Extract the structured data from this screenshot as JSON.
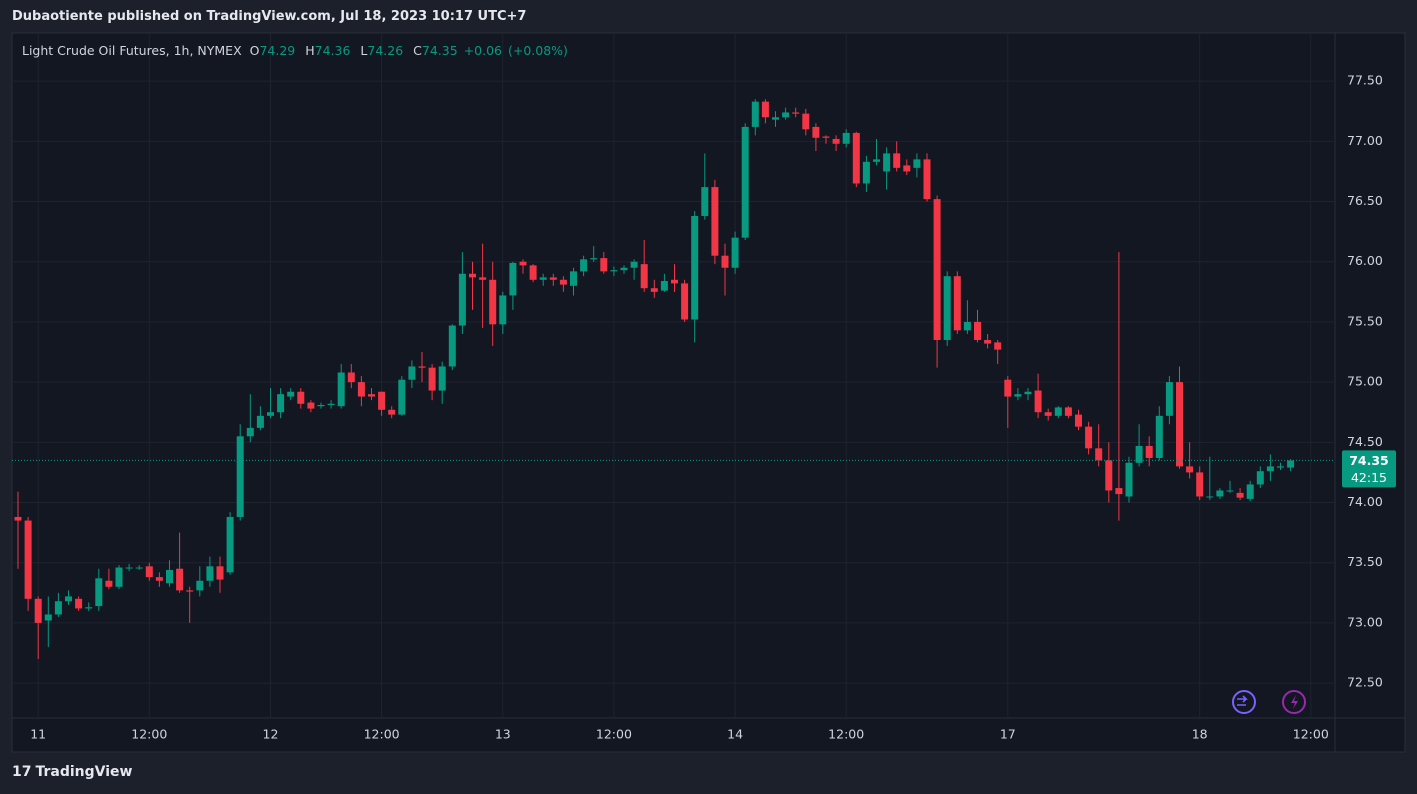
{
  "publisher_line": "Dubaotiente published on TradingView.com, Jul 18, 2023 10:17 UTC+7",
  "brand": "TradingView",
  "chart_data": {
    "type": "candlestick",
    "title": "Light Crude Oil Futures, 1h, NYMEX",
    "ohlc_labels": [
      "O",
      "H",
      "L",
      "C"
    ],
    "change": "+0.06",
    "change_pct": "(+0.08%)",
    "countdown": "42:15",
    "up_color": "#089981",
    "down_color": "#f23645",
    "grid": true,
    "ylim": [
      72.21,
      77.9
    ],
    "yticks": [
      {
        "value": 72.5,
        "label": "72.50"
      },
      {
        "value": 73,
        "label": "73.00"
      },
      {
        "value": 73.5,
        "label": "73.50"
      },
      {
        "value": 74,
        "label": "74.00"
      },
      {
        "value": 74.5,
        "label": "74.50"
      },
      {
        "value": 75,
        "label": "75.00"
      },
      {
        "value": 75.5,
        "label": "75.50"
      },
      {
        "value": 76,
        "label": "76.00"
      },
      {
        "value": 76.5,
        "label": "76.50"
      },
      {
        "value": 77,
        "label": "77.00"
      },
      {
        "value": 77.5,
        "label": "77.50"
      }
    ],
    "categories": [
      null,
      null,
      "11",
      null,
      null,
      null,
      null,
      null,
      null,
      null,
      null,
      null,
      null,
      "12:00",
      null,
      null,
      null,
      null,
      null,
      null,
      null,
      null,
      null,
      null,
      null,
      "12",
      null,
      null,
      null,
      null,
      null,
      null,
      null,
      null,
      null,
      null,
      "12:00",
      null,
      null,
      null,
      null,
      null,
      null,
      null,
      null,
      null,
      null,
      null,
      "13",
      null,
      null,
      null,
      null,
      null,
      null,
      null,
      null,
      null,
      null,
      "12:00",
      null,
      null,
      null,
      null,
      null,
      null,
      null,
      null,
      null,
      null,
      null,
      "14",
      null,
      null,
      null,
      null,
      null,
      null,
      null,
      null,
      null,
      null,
      "12:00",
      null,
      null,
      null,
      null,
      null,
      null,
      null,
      null,
      null,
      null,
      null,
      null,
      null,
      null,
      null,
      "17",
      null,
      null,
      null,
      null,
      null,
      null,
      null,
      null,
      null,
      null,
      null,
      null,
      null,
      null,
      null,
      null,
      null,
      null,
      "18",
      null,
      null,
      null,
      null,
      null,
      null,
      null,
      null,
      null,
      null,
      "12:00",
      null
    ],
    "open": [
      73.88,
      73.85,
      73.2,
      73.02,
      73.07,
      73.18,
      73.2,
      73.12,
      73.14,
      73.35,
      73.3,
      73.46,
      73.46,
      73.47,
      73.38,
      73.33,
      73.45,
      73.27,
      73.27,
      73.35,
      73.47,
      73.42,
      73.88,
      74.55,
      74.62,
      74.72,
      74.75,
      74.88,
      74.92,
      74.83,
      74.8,
      74.81,
      74.8,
      75.08,
      75,
      74.9,
      74.92,
      74.77,
      74.73,
      75.02,
      75.13,
      75.12,
      74.93,
      75.13,
      75.47,
      75.9,
      75.87,
      75.85,
      75.48,
      75.72,
      76,
      75.97,
      75.85,
      75.87,
      75.85,
      75.8,
      75.92,
      76.02,
      76.03,
      75.92,
      75.93,
      75.95,
      75.98,
      75.78,
      75.76,
      75.85,
      75.82,
      75.52,
      76.38,
      76.62,
      76.05,
      75.95,
      76.2,
      77.12,
      77.33,
      77.18,
      77.2,
      77.24,
      77.23,
      77.12,
      77.04,
      77.02,
      76.98,
      77.07,
      76.65,
      76.83,
      76.75,
      76.9,
      76.8,
      76.78,
      76.85,
      76.52,
      75.35,
      75.88,
      75.43,
      75.5,
      75.35,
      75.33,
      75.02,
      74.88,
      74.9,
      74.93,
      74.75,
      74.72,
      74.79,
      74.73,
      74.63,
      74.45,
      74.35,
      74.12,
      74.05,
      74.33,
      74.47,
      74.37,
      74.72,
      75,
      74.3,
      74.25,
      74.05,
      74.05,
      74.1,
      74.08,
      74.03,
      74.15,
      74.26,
      74.29,
      74.29,
      null,
      null,
      null
    ],
    "high": [
      74.09,
      73.88,
      73.22,
      73.22,
      73.25,
      73.27,
      73.22,
      73.17,
      73.45,
      73.45,
      73.48,
      73.49,
      73.48,
      73.5,
      73.42,
      73.52,
      73.75,
      73.3,
      73.47,
      73.55,
      73.55,
      73.92,
      74.65,
      74.9,
      74.8,
      74.95,
      74.95,
      74.95,
      74.95,
      74.85,
      74.83,
      74.85,
      75.15,
      75.15,
      75.05,
      74.95,
      74.92,
      74.8,
      75.05,
      75.18,
      75.25,
      75.15,
      75.17,
      75.48,
      76.08,
      76,
      76.15,
      76,
      75.75,
      76,
      76.02,
      75.98,
      75.9,
      75.9,
      75.88,
      75.95,
      76.05,
      76.13,
      76.08,
      75.96,
      75.97,
      76.02,
      76.18,
      75.85,
      75.9,
      75.98,
      75.85,
      76.42,
      76.9,
      76.68,
      76.15,
      76.25,
      77.15,
      77.35,
      77.35,
      77.25,
      77.28,
      77.28,
      77.27,
      77.15,
      77.05,
      77.05,
      77.1,
      77.08,
      76.88,
      77.02,
      76.95,
      77,
      76.85,
      76.9,
      76.9,
      76.55,
      75.92,
      75.92,
      75.68,
      75.6,
      75.4,
      75.35,
      75.05,
      74.95,
      74.95,
      75.07,
      74.78,
      74.8,
      74.8,
      74.77,
      74.67,
      74.65,
      74.5,
      76.08,
      74.38,
      74.65,
      74.55,
      74.8,
      75.05,
      75.13,
      74.5,
      74.3,
      74.38,
      74.12,
      74.18,
      74.12,
      74.18,
      74.3,
      74.4,
      74.33,
      74.36,
      null,
      null,
      null
    ],
    "low": [
      73.45,
      73.1,
      72.7,
      72.8,
      73.05,
      73.15,
      73.1,
      73.1,
      73.1,
      73.28,
      73.28,
      73.43,
      73.44,
      73.35,
      73.3,
      73.3,
      73.25,
      73,
      73.22,
      73.3,
      73.25,
      73.4,
      73.85,
      74.5,
      74.6,
      74.7,
      74.7,
      74.85,
      74.78,
      74.75,
      74.78,
      74.78,
      74.78,
      74.95,
      74.8,
      74.85,
      74.72,
      74.7,
      74.72,
      74.95,
      75,
      74.85,
      74.82,
      75.1,
      75.4,
      75.6,
      75.45,
      75.3,
      75.4,
      75.6,
      75.9,
      75.83,
      75.8,
      75.8,
      75.75,
      75.72,
      75.88,
      76,
      75.9,
      75.88,
      75.9,
      75.85,
      75.75,
      75.7,
      75.75,
      75.75,
      75.5,
      75.33,
      76.35,
      75.98,
      75.72,
      75.9,
      76.18,
      77.05,
      77.15,
      77.12,
      77.18,
      77.2,
      77.05,
      76.92,
      76.98,
      76.92,
      76.95,
      76.62,
      76.58,
      76.8,
      76.6,
      76.75,
      76.72,
      76.7,
      76.5,
      75.12,
      75.3,
      75.4,
      75.4,
      75.33,
      75.28,
      75.15,
      74.62,
      74.85,
      74.85,
      74.7,
      74.68,
      74.7,
      74.7,
      74.6,
      74.4,
      74.3,
      74,
      73.85,
      74,
      74.3,
      74.3,
      74.35,
      74.65,
      74.28,
      74.2,
      74.02,
      74.02,
      74.03,
      74.08,
      74.02,
      74.01,
      74.12,
      74.18,
      74.27,
      74.26,
      null,
      null,
      null
    ],
    "close": [
      73.85,
      73.2,
      73,
      73.07,
      73.18,
      73.22,
      73.12,
      73.13,
      73.37,
      73.3,
      73.46,
      73.46,
      73.46,
      73.38,
      73.35,
      73.44,
      73.27,
      73.26,
      73.35,
      73.47,
      73.36,
      73.88,
      74.55,
      74.62,
      74.72,
      74.75,
      74.9,
      74.92,
      74.82,
      74.78,
      74.81,
      74.82,
      75.08,
      75,
      74.88,
      74.88,
      74.77,
      74.73,
      75.02,
      75.13,
      75.12,
      74.93,
      75.13,
      75.47,
      75.9,
      75.87,
      75.85,
      75.48,
      75.72,
      75.99,
      75.97,
      75.85,
      75.87,
      75.85,
      75.81,
      75.92,
      76.02,
      76.03,
      75.92,
      75.93,
      75.95,
      76,
      75.78,
      75.75,
      75.84,
      75.82,
      75.52,
      76.38,
      76.62,
      76.05,
      75.95,
      76.2,
      77.12,
      77.33,
      77.2,
      77.2,
      77.24,
      77.23,
      77.1,
      77.03,
      77.03,
      76.98,
      77.07,
      76.65,
      76.83,
      76.85,
      76.9,
      76.78,
      76.75,
      76.85,
      76.52,
      75.35,
      75.88,
      75.43,
      75.5,
      75.35,
      75.32,
      75.27,
      74.88,
      74.9,
      74.92,
      74.75,
      74.72,
      74.79,
      74.72,
      74.63,
      74.45,
      74.35,
      74.1,
      74.07,
      74.33,
      74.47,
      74.37,
      74.72,
      75,
      74.3,
      74.25,
      74.05,
      74.05,
      74.1,
      74.1,
      74.04,
      74.15,
      74.26,
      74.3,
      74.3,
      74.35,
      null,
      null,
      null
    ]
  }
}
